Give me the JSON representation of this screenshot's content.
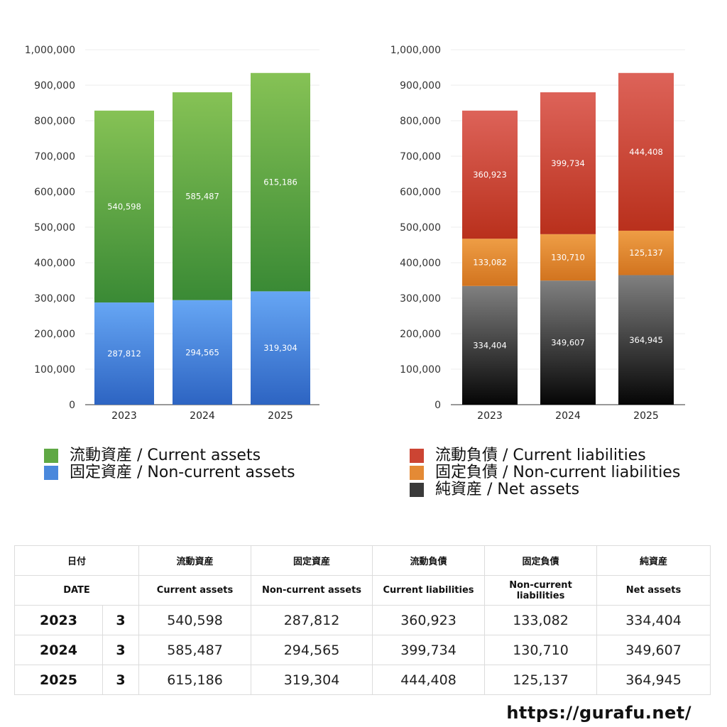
{
  "chart_data": [
    {
      "type": "bar",
      "stacked": true,
      "categories": [
        "2023",
        "2024",
        "2025"
      ],
      "series": [
        {
          "name": "固定資産 / Non-current assets",
          "values": [
            287812,
            294565,
            319304
          ],
          "color_top": "#66a6f4",
          "color_bottom": "#2d64c2"
        },
        {
          "name": "流動資産 / Current assets",
          "values": [
            540598,
            585487,
            615186
          ],
          "color_top": "#86c255",
          "color_bottom": "#3a8a35"
        }
      ],
      "ylim": [
        0,
        1000000
      ],
      "yticks": [
        "0",
        "100,000",
        "200,000",
        "300,000",
        "400,000",
        "500,000",
        "600,000",
        "700,000",
        "800,000",
        "900,000",
        "1,000,000"
      ],
      "grid": true,
      "legend_position": "bottom"
    },
    {
      "type": "bar",
      "stacked": true,
      "categories": [
        "2023",
        "2024",
        "2025"
      ],
      "series": [
        {
          "name": "純資産 / Net assets",
          "values": [
            334404,
            349607,
            364945
          ],
          "color_top": "#808080",
          "color_bottom": "#050505"
        },
        {
          "name": "固定負債 / Non-current liabilities",
          "values": [
            133082,
            130710,
            125137
          ],
          "color_top": "#ee9d45",
          "color_bottom": "#d2741f"
        },
        {
          "name": "流動負債 / Current liabilities",
          "values": [
            360923,
            399734,
            444408
          ],
          "color_top": "#dd6359",
          "color_bottom": "#b9301c"
        }
      ],
      "ylim": [
        0,
        1000000
      ],
      "yticks": [
        "0",
        "100,000",
        "200,000",
        "300,000",
        "400,000",
        "500,000",
        "600,000",
        "700,000",
        "800,000",
        "900,000",
        "1,000,000"
      ],
      "grid": true,
      "legend_position": "bottom"
    }
  ],
  "legend_left": [
    {
      "label": "流動資産 / Current assets",
      "color": "#5fa844"
    },
    {
      "label": "固定資産 / Non-current assets",
      "color": "#4a88dc"
    }
  ],
  "legend_right": [
    {
      "label": "流動負債 / Current liabilities",
      "color": "#cc4433"
    },
    {
      "label": "固定負債 / Non-current liabilities",
      "color": "#e48a35"
    },
    {
      "label": "純資産 / Net assets",
      "color": "#3a3a3a"
    }
  ],
  "table": {
    "header_ja": [
      "日付",
      "流動資産",
      "固定資産",
      "流動負債",
      "固定負債",
      "純資産"
    ],
    "header_en": [
      "DATE",
      "Current assets",
      "Non-current assets",
      "Current liabilities",
      "Non-current liabilities",
      "Net assets"
    ],
    "rows": [
      {
        "year": "2023",
        "month": "3",
        "values": [
          "540,598",
          "287,812",
          "360,923",
          "133,082",
          "334,404"
        ]
      },
      {
        "year": "2024",
        "month": "3",
        "values": [
          "585,487",
          "294,565",
          "399,734",
          "130,710",
          "349,607"
        ]
      },
      {
        "year": "2025",
        "month": "3",
        "values": [
          "615,186",
          "319,304",
          "444,408",
          "125,137",
          "364,945"
        ]
      }
    ]
  },
  "footer": {
    "url": "https://gurafu.net/"
  }
}
